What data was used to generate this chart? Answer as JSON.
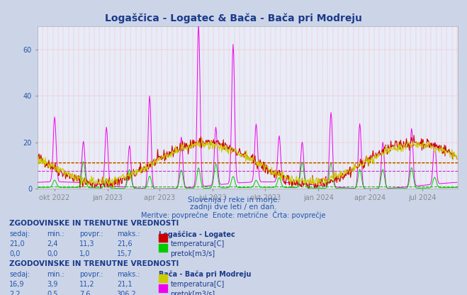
{
  "title": "Logaščica - Logatec & Bača - Bača pri Modreju",
  "title_color": "#1a3a8a",
  "subtitle1": "Slovenija / reke in morje.",
  "subtitle2": "zadnji dve leti / en dan.",
  "subtitle3": "Meritve: povprečne  Enote: metrične  Črta: povprečje",
  "subtitle_color": "#2255aa",
  "background_color": "#ccd5e8",
  "plot_bg_color": "#e8ecf8",
  "grid_color": "#ffaaaa",
  "ylim": [
    0,
    70
  ],
  "yticks": [
    0,
    20,
    40,
    60
  ],
  "hlines": [
    {
      "y": 11.3,
      "color": "#cc0000",
      "lw": 0.8
    },
    {
      "y": 1.0,
      "color": "#00aa00",
      "lw": 0.8
    },
    {
      "y": 11.2,
      "color": "#cccc00",
      "lw": 0.8
    },
    {
      "y": 7.6,
      "color": "#cc00cc",
      "lw": 0.8
    }
  ],
  "xtick_labels": [
    "okt 2022",
    "jan 2023",
    "apr 2023",
    "jul 2023",
    "okt 2023",
    "jan 2024",
    "apr 2024",
    "jul 2024"
  ],
  "xtick_positions": [
    30,
    122,
    212,
    304,
    396,
    488,
    578,
    669
  ],
  "table1_title": "ZGODOVINSKE IN TRENUTNE VREDNOSTI",
  "table1_headers": [
    "sedaj:",
    "min.:",
    "povpr.:",
    "maks.:"
  ],
  "table1_values": [
    [
      "21,0",
      "2,4",
      "11,3",
      "21,6"
    ],
    [
      "0,0",
      "0,0",
      "1,0",
      "15,7"
    ]
  ],
  "table1_station": "Logaščica - Logatec",
  "table1_labels": [
    "temperatura[C]",
    "pretok[m3/s]"
  ],
  "table2_title": "ZGODOVINSKE IN TRENUTNE VREDNOSTI",
  "table2_headers": [
    "sedaj:",
    "min.:",
    "povpr.:",
    "maks.:"
  ],
  "table2_values": [
    [
      "16,9",
      "3,9",
      "11,2",
      "21,1"
    ],
    [
      "2,2",
      "0,5",
      "7,6",
      "306,2"
    ]
  ],
  "table2_station": "Bača - Bača pri Modreju",
  "table2_labels": [
    "temperatura[C]",
    "pretok[m3/s]"
  ],
  "color_temp1": "#cc0000",
  "color_flow1": "#00cc00",
  "color_temp2": "#cccc00",
  "color_flow2": "#ee00ee",
  "seed": 42
}
